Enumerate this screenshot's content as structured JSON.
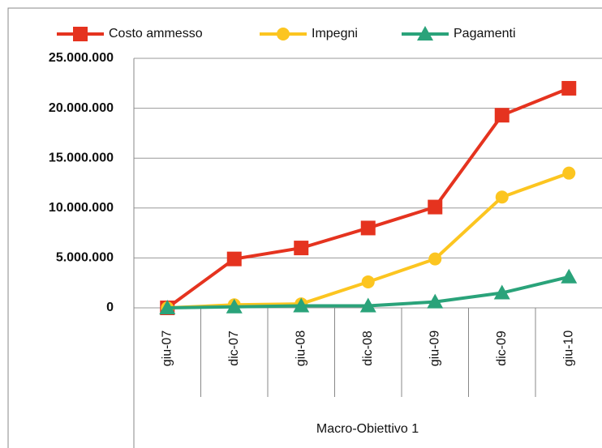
{
  "chart_data": {
    "type": "line",
    "categories": [
      "giu-07",
      "dic-07",
      "giu-08",
      "dic-08",
      "giu-09",
      "dic-09",
      "giu-10"
    ],
    "series": [
      {
        "name": "Costo ammesso",
        "color": "#e5331f",
        "marker": "square",
        "values": [
          0,
          4900000,
          6000000,
          8000000,
          10100000,
          19300000,
          22000000
        ]
      },
      {
        "name": "Impegni",
        "color": "#fcc520",
        "marker": "circle",
        "values": [
          0,
          300000,
          400000,
          2600000,
          4900000,
          11100000,
          13500000
        ]
      },
      {
        "name": "Pagamenti",
        "color": "#2aa37a",
        "marker": "triangle",
        "values": [
          0,
          100000,
          200000,
          200000,
          600000,
          1500000,
          3100000
        ]
      }
    ],
    "group_label": "Macro-Obiettivo 1",
    "ylim": [
      0,
      25000000
    ],
    "yticks": [
      0,
      {
        "value": 5000000,
        "label": "5.000.000"
      },
      {
        "value": 10000000,
        "label": "10.000.000"
      },
      {
        "value": 15000000,
        "label": "15.000.000"
      },
      {
        "value": 20000000,
        "label": "20.000.000"
      },
      {
        "value": 25000000,
        "label": "25.000.000"
      }
    ],
    "legend": "top",
    "grid": true
  }
}
